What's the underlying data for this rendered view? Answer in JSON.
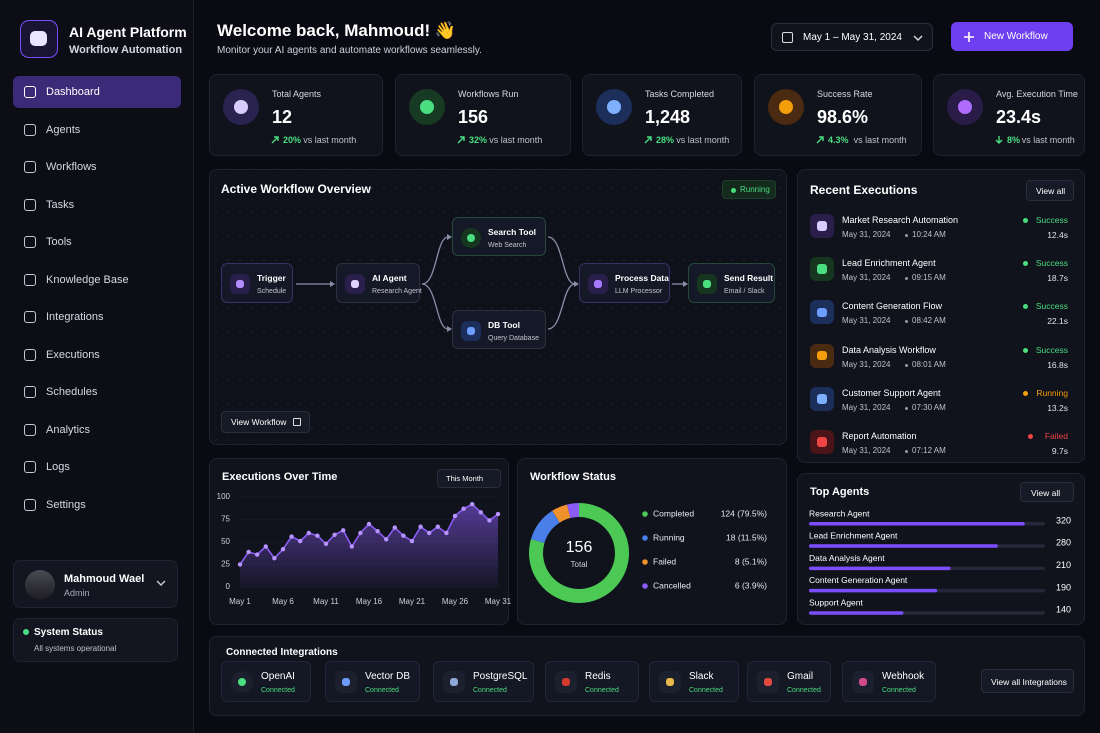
{
  "sidebar": {
    "brand": {
      "title": "AI Agent Platform",
      "subtitle": "Workflow Automation"
    },
    "nav": [
      "Dashboard",
      "Agents",
      "Workflows",
      "Tasks",
      "Tools",
      "Knowledge Base",
      "Integrations",
      "Executions",
      "Schedules",
      "Analytics",
      "Logs",
      "Settings"
    ],
    "user": {
      "name": "Mahmoud Wael",
      "role": "Admin"
    },
    "status": {
      "title": "System Status",
      "text": "All systems operational"
    }
  },
  "header": {
    "title": "Welcome back, Mahmoud! 👋",
    "subtitle": "Monitor your AI agents and automate workflows seamlessly.",
    "date_range": "May 1 – May 31, 2024",
    "button": "New Workflow"
  },
  "stats": [
    {
      "label": "Total Agents",
      "value": "12",
      "change": "20%",
      "period": "vs last month",
      "trend": "up"
    },
    {
      "label": "Workflows Run",
      "value": "156",
      "change": "32%",
      "period": "vs last month",
      "trend": "up"
    },
    {
      "label": "Tasks Completed",
      "value": "1,248",
      "change": "28%",
      "period": "vs last month",
      "trend": "up"
    },
    {
      "label": "Success Rate",
      "value": "98.6%",
      "change": "4.3%",
      "period": "vs last month",
      "trend": "up"
    },
    {
      "label": "Avg. Execution Time",
      "value": "23.4s",
      "change": "8%",
      "period": "vs last month",
      "trend": "down"
    }
  ],
  "workflow": {
    "title": "Active Workflow Overview",
    "status": "Running",
    "nodes": [
      {
        "label": "Trigger",
        "sub": "Schedule"
      },
      {
        "label": "AI Agent",
        "sub": "Research Agent"
      },
      {
        "label": "Search Tool",
        "sub": "Web Search"
      },
      {
        "label": "DB Tool",
        "sub": "Query Database"
      },
      {
        "label": "Process Data",
        "sub": "LLM Processor"
      },
      {
        "label": "Send Result",
        "sub": "Email / Slack"
      }
    ],
    "button": "View Workflow"
  },
  "executions": {
    "title": "Recent Executions",
    "action": "View all",
    "items": [
      {
        "name": "Market Research Automation",
        "date": "May 31, 2024",
        "time": "10:24 AM",
        "status": "Success",
        "duration": "12.4s",
        "color": "#4ade80"
      },
      {
        "name": "Lead Enrichment Agent",
        "date": "May 31, 2024",
        "time": "09:15 AM",
        "status": "Success",
        "duration": "18.7s",
        "color": "#4ade80"
      },
      {
        "name": "Content Generation Flow",
        "date": "May 31, 2024",
        "time": "08:42 AM",
        "status": "Success",
        "duration": "22.1s",
        "color": "#4ade80"
      },
      {
        "name": "Data Analysis Workflow",
        "date": "May 31, 2024",
        "time": "08:01 AM",
        "status": "Success",
        "duration": "16.8s",
        "color": "#4ade80"
      },
      {
        "name": "Customer Support Agent",
        "date": "May 31, 2024",
        "time": "07:30 AM",
        "status": "Running",
        "duration": "13.2s",
        "color": "#f59e0b"
      },
      {
        "name": "Report Automation",
        "date": "May 31, 2024",
        "time": "07:12 AM",
        "status": "Failed",
        "duration": "9.7s",
        "color": "#ef4444"
      }
    ]
  },
  "integrations": {
    "title": "Connected Integrations",
    "items": [
      {
        "name": "OpenAI",
        "status": "Connected"
      },
      {
        "name": "Vector DB",
        "status": "Connected"
      },
      {
        "name": "PostgreSQL",
        "status": "Connected"
      },
      {
        "name": "Redis",
        "status": "Connected"
      },
      {
        "name": "Slack",
        "status": "Connected"
      },
      {
        "name": "Gmail",
        "status": "Connected"
      },
      {
        "name": "Webhook",
        "status": "Connected"
      }
    ],
    "action": "View all Integrations"
  },
  "chart_data": [
    {
      "type": "line",
      "title": "Executions Over Time",
      "control": "This Month",
      "categories": [
        "May 1",
        null,
        null,
        null,
        null,
        "May 6",
        null,
        null,
        null,
        null,
        "May 11",
        null,
        null,
        null,
        null,
        "May 16",
        null,
        null,
        null,
        null,
        "May 21",
        null,
        null,
        null,
        null,
        "May 26",
        null,
        null,
        null,
        null,
        "May 31"
      ],
      "values": [
        25,
        39,
        36,
        45,
        32,
        42,
        56,
        51,
        60,
        57,
        48,
        58,
        63,
        45,
        60,
        70,
        62,
        53,
        66,
        57,
        51,
        67,
        60,
        67,
        60,
        79,
        87,
        92,
        83,
        74,
        81
      ],
      "color": "#8b5cf6",
      "ylim": [
        0,
        100
      ],
      "yticks": [
        0,
        25,
        50,
        75,
        100
      ],
      "grid": true
    },
    {
      "type": "pie",
      "title": "Workflow Status",
      "center_value": 156,
      "center_label": "Total",
      "categories": [
        "Completed",
        "Running",
        "Failed",
        "Cancelled"
      ],
      "values": [
        124,
        18,
        8,
        6
      ],
      "value_labels": [
        "124 (79.5%)",
        "18 (11.5%)",
        "8 (5.1%)",
        "6 (3.9%)"
      ],
      "colors": [
        "#4cc955",
        "#4a7ee8",
        "#f0922b",
        "#8b5cf6"
      ]
    },
    {
      "type": "bar",
      "orientation": "horizontal",
      "title": "Top Agents",
      "action": "View all",
      "categories": [
        "Research Agent",
        "Lead Enrichment Agent",
        "Data Analysis Agent",
        "Content Generation Agent",
        "Support Agent"
      ],
      "values": [
        320,
        280,
        210,
        190,
        140
      ],
      "xlim": [
        0,
        350
      ],
      "color": "#7c4dff"
    }
  ]
}
